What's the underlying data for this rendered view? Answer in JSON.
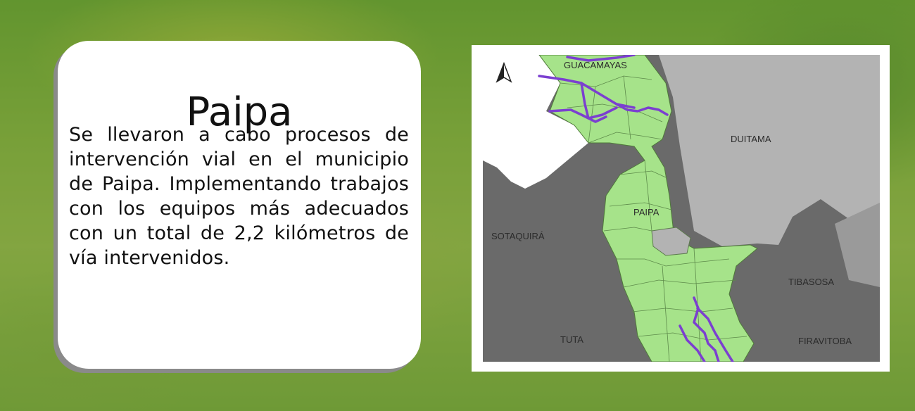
{
  "card": {
    "title": "Paipa",
    "body": "Se llevaron a cabo procesos de intervención vial en el municipio de Paipa. Implementando trabajos con los equipos más adecuados con un total de 2,2 kilómetros de vía intervenidos."
  },
  "map": {
    "labels": {
      "guacamayas": "GUACAMAYAS",
      "duitama": "DUITAMA",
      "paipa": "PAIPA",
      "sotaquira": "SOTAQUIRÁ",
      "tibasosa": "TIBASOSA",
      "tuta": "TUTA",
      "firavitoba": "FIRAVITOBA"
    },
    "north_arrow": "compass-north-arrow",
    "colors": {
      "municipality_fill": "#a6e38a",
      "road_color": "#7b3fd0",
      "dark_region": "#6a6a6a",
      "light_region": "#b3b3b3"
    }
  },
  "icons": [
    "north-arrow-icon"
  ]
}
